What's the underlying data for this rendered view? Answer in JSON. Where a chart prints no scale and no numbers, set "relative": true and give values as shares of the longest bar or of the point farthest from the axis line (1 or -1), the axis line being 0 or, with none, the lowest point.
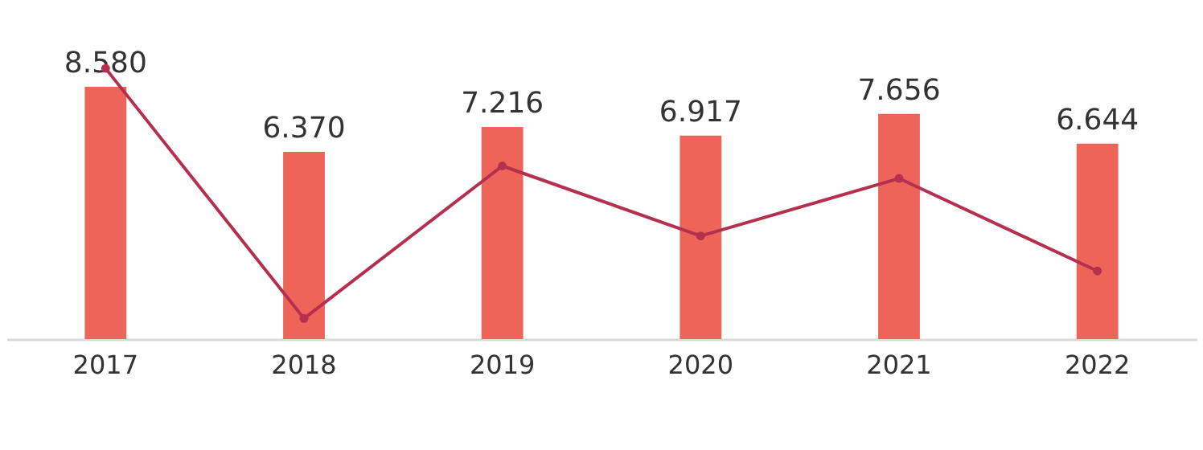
{
  "chart_data": [
    {
      "type": "bar",
      "categories": [
        "2017",
        "2018",
        "2019",
        "2020",
        "2021",
        "2022"
      ],
      "tick_labels": "x",
      "color": "#ef6459",
      "values": [
        8.58,
        6.37,
        7.216,
        6.917,
        7.656,
        6.644
      ],
      "value_labels": [
        "8.580",
        "6.370",
        "7.216",
        "6.917",
        "7.656",
        "6.644"
      ]
    },
    {
      "type": "line",
      "relative": true,
      "categories": [
        null,
        null,
        null,
        null,
        null,
        null
      ],
      "tick_labels": false,
      "color": "#b5304f",
      "marker": "circle",
      "values": [
        1,
        0,
        0.61,
        0.33,
        0.56,
        0.19
      ]
    }
  ]
}
